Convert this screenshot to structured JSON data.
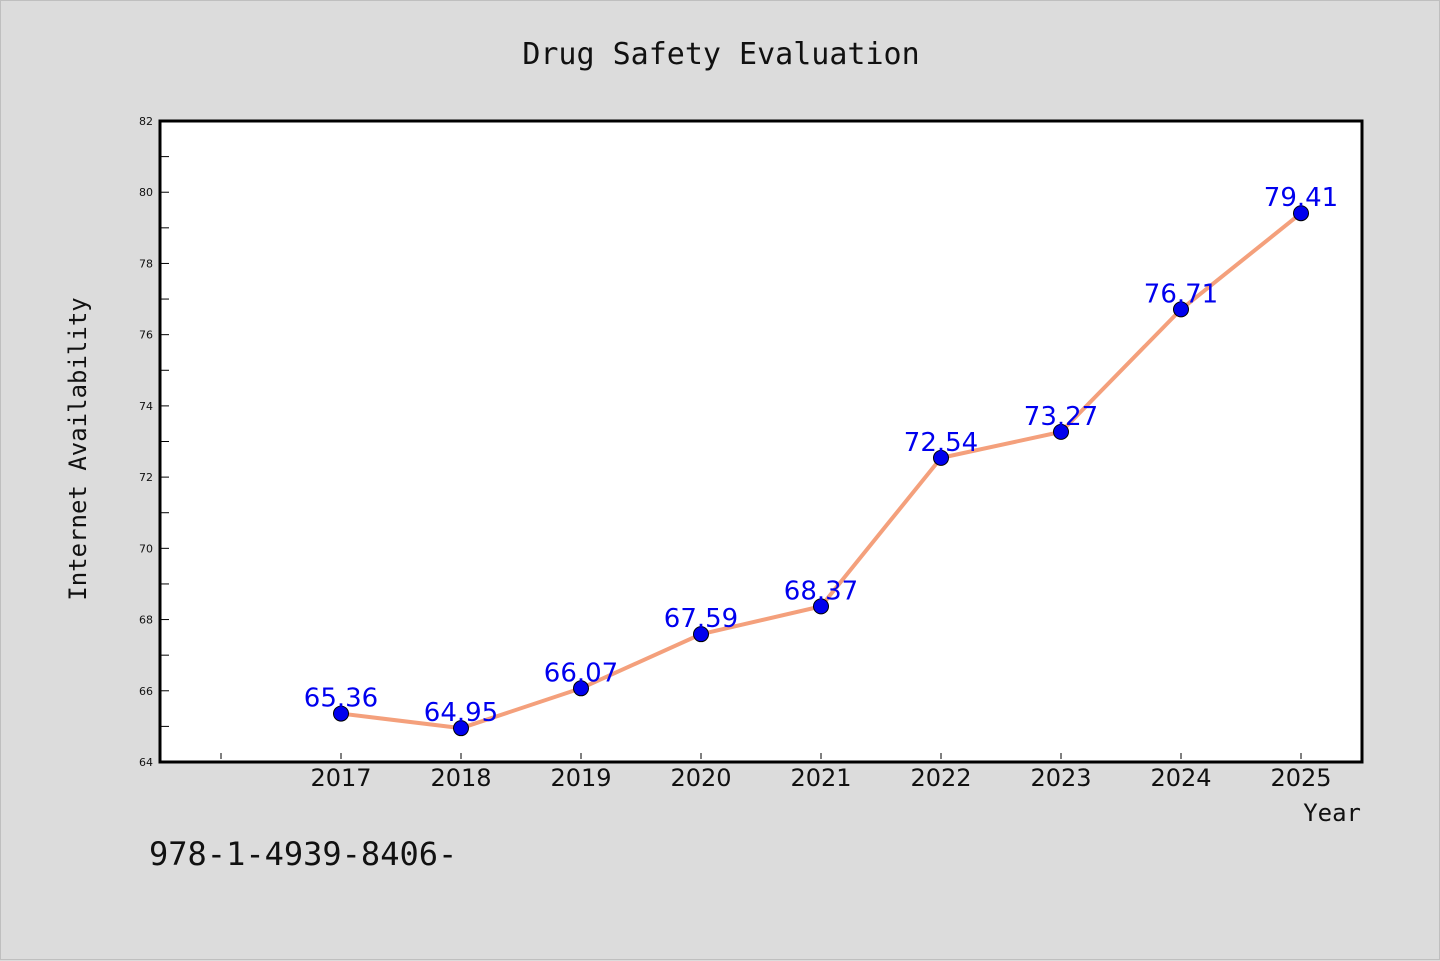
{
  "chart_data": {
    "type": "line",
    "title": "Drug Safety Evaluation",
    "xlabel": "Year",
    "ylabel": "Internet Availability",
    "categories": [
      "2017",
      "2018",
      "2019",
      "2020",
      "2021",
      "2022",
      "2023",
      "2024",
      "2025"
    ],
    "values": [
      65.36,
      64.95,
      66.07,
      67.59,
      68.37,
      72.54,
      73.27,
      76.71,
      79.41
    ],
    "data_labels": [
      "65.36",
      "64.95",
      "66.07",
      "67.59",
      "68.37",
      "72.54",
      "73.27",
      "76.71",
      "79.41"
    ],
    "ylim": [
      64,
      82
    ],
    "yticks": [
      64,
      66,
      68,
      70,
      72,
      74,
      76,
      78,
      80,
      82
    ],
    "grid": false,
    "legend": "none",
    "colors": {
      "line": "#f4a07c",
      "marker": "#0000ee",
      "label": "#0000ee",
      "background": "#dcdcdc",
      "plot_background": "#ffffff"
    }
  },
  "footnote": "978-1-4939-8406-"
}
